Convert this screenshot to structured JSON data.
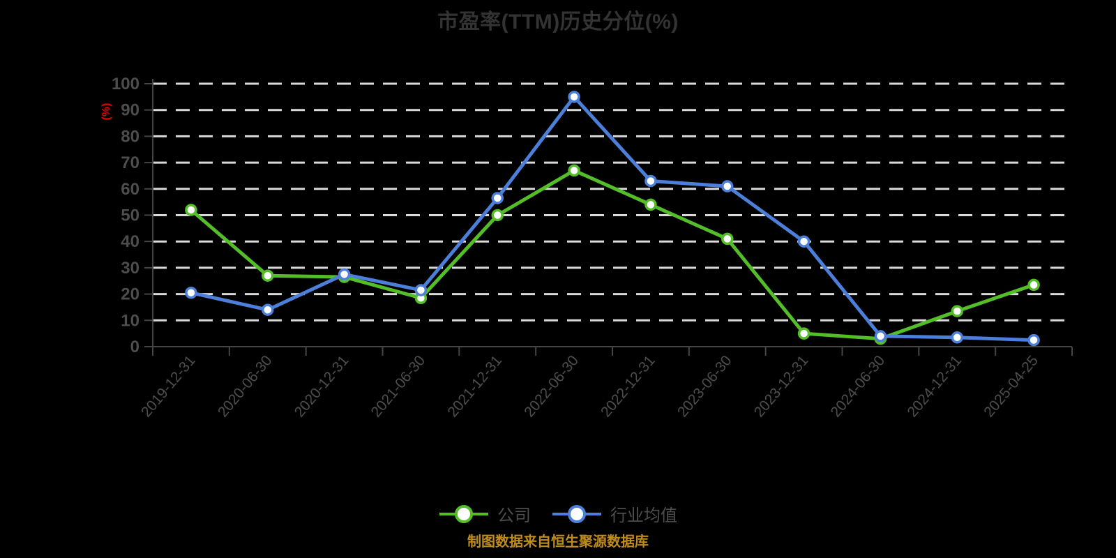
{
  "title": "市盈率(TTM)历史分位(%)",
  "footer": {
    "text": "制图数据来自恒生聚源数据库",
    "color": "#bf8b1b"
  },
  "legend": {
    "items": [
      {
        "label": "公司",
        "color": "#54be28"
      },
      {
        "label": "行业均值",
        "color": "#4c7fd9"
      }
    ]
  },
  "y_axis": {
    "unit": "(%)",
    "unit_color": "#e60000",
    "min": 0,
    "max": 100,
    "step": 10
  },
  "chart_data": {
    "type": "line",
    "title": "市盈率(TTM)历史分位(%)",
    "categories": [
      "2019-12-31",
      "2020-06-30",
      "2020-12-31",
      "2021-06-30",
      "2021-12-31",
      "2022-06-30",
      "2022-12-31",
      "2023-06-30",
      "2023-12-31",
      "2024-06-30",
      "2024-12-31",
      "2025-04-25"
    ],
    "series": [
      {
        "name": "公司",
        "color": "#54be28",
        "values": [
          52,
          27,
          26.5,
          18.5,
          50,
          67,
          54,
          41,
          5,
          3,
          13.5,
          23.5
        ]
      },
      {
        "name": "行业均值",
        "color": "#4c7fd9",
        "values": [
          20.5,
          14,
          27.5,
          21.5,
          56.5,
          95,
          63,
          61,
          40,
          4,
          3.5,
          2.5
        ]
      }
    ],
    "xlabel": "",
    "ylabel": "(%)",
    "ylim": [
      0,
      100
    ],
    "ytick_step": 10,
    "grid": true,
    "grid_style": "dashed",
    "legend_position": "bottom"
  },
  "colors": {
    "background": "#000000",
    "title": "#333333",
    "axis_line": "#454545",
    "tick_label": "#4d4d4d",
    "grid_line": "#d9d9d9",
    "marker_fill": "#ffffff"
  }
}
